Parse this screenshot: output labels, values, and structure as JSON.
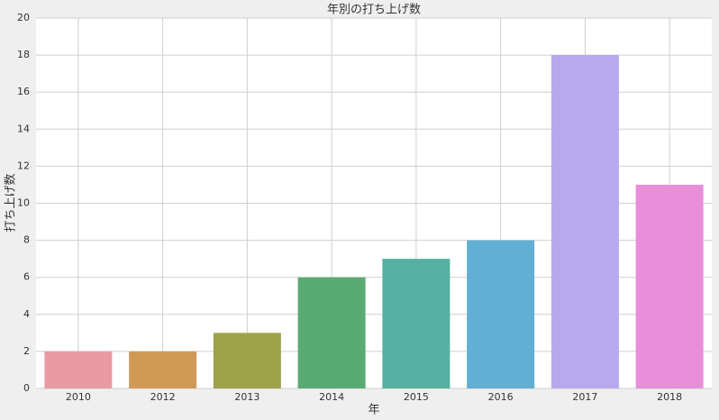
{
  "chart_data": {
    "type": "bar",
    "title": "年別の打ち上げ数",
    "x_label": "年",
    "y_label": "打ち上げ数",
    "categories": [
      "2010",
      "2012",
      "2013",
      "2014",
      "2015",
      "2016",
      "2017",
      "2018"
    ],
    "values": [
      2,
      2,
      3,
      6,
      7,
      8,
      18,
      11
    ],
    "colors": [
      "#e99aa5",
      "#d09a55",
      "#9ea24a",
      "#5aab73",
      "#55b0a1",
      "#62afd4",
      "#b8a9ee",
      "#e78fd8"
    ],
    "ylim": [
      0,
      20
    ],
    "yticks": [
      0,
      2,
      4,
      6,
      8,
      10,
      12,
      14,
      16,
      18,
      20
    ],
    "grid": true
  }
}
